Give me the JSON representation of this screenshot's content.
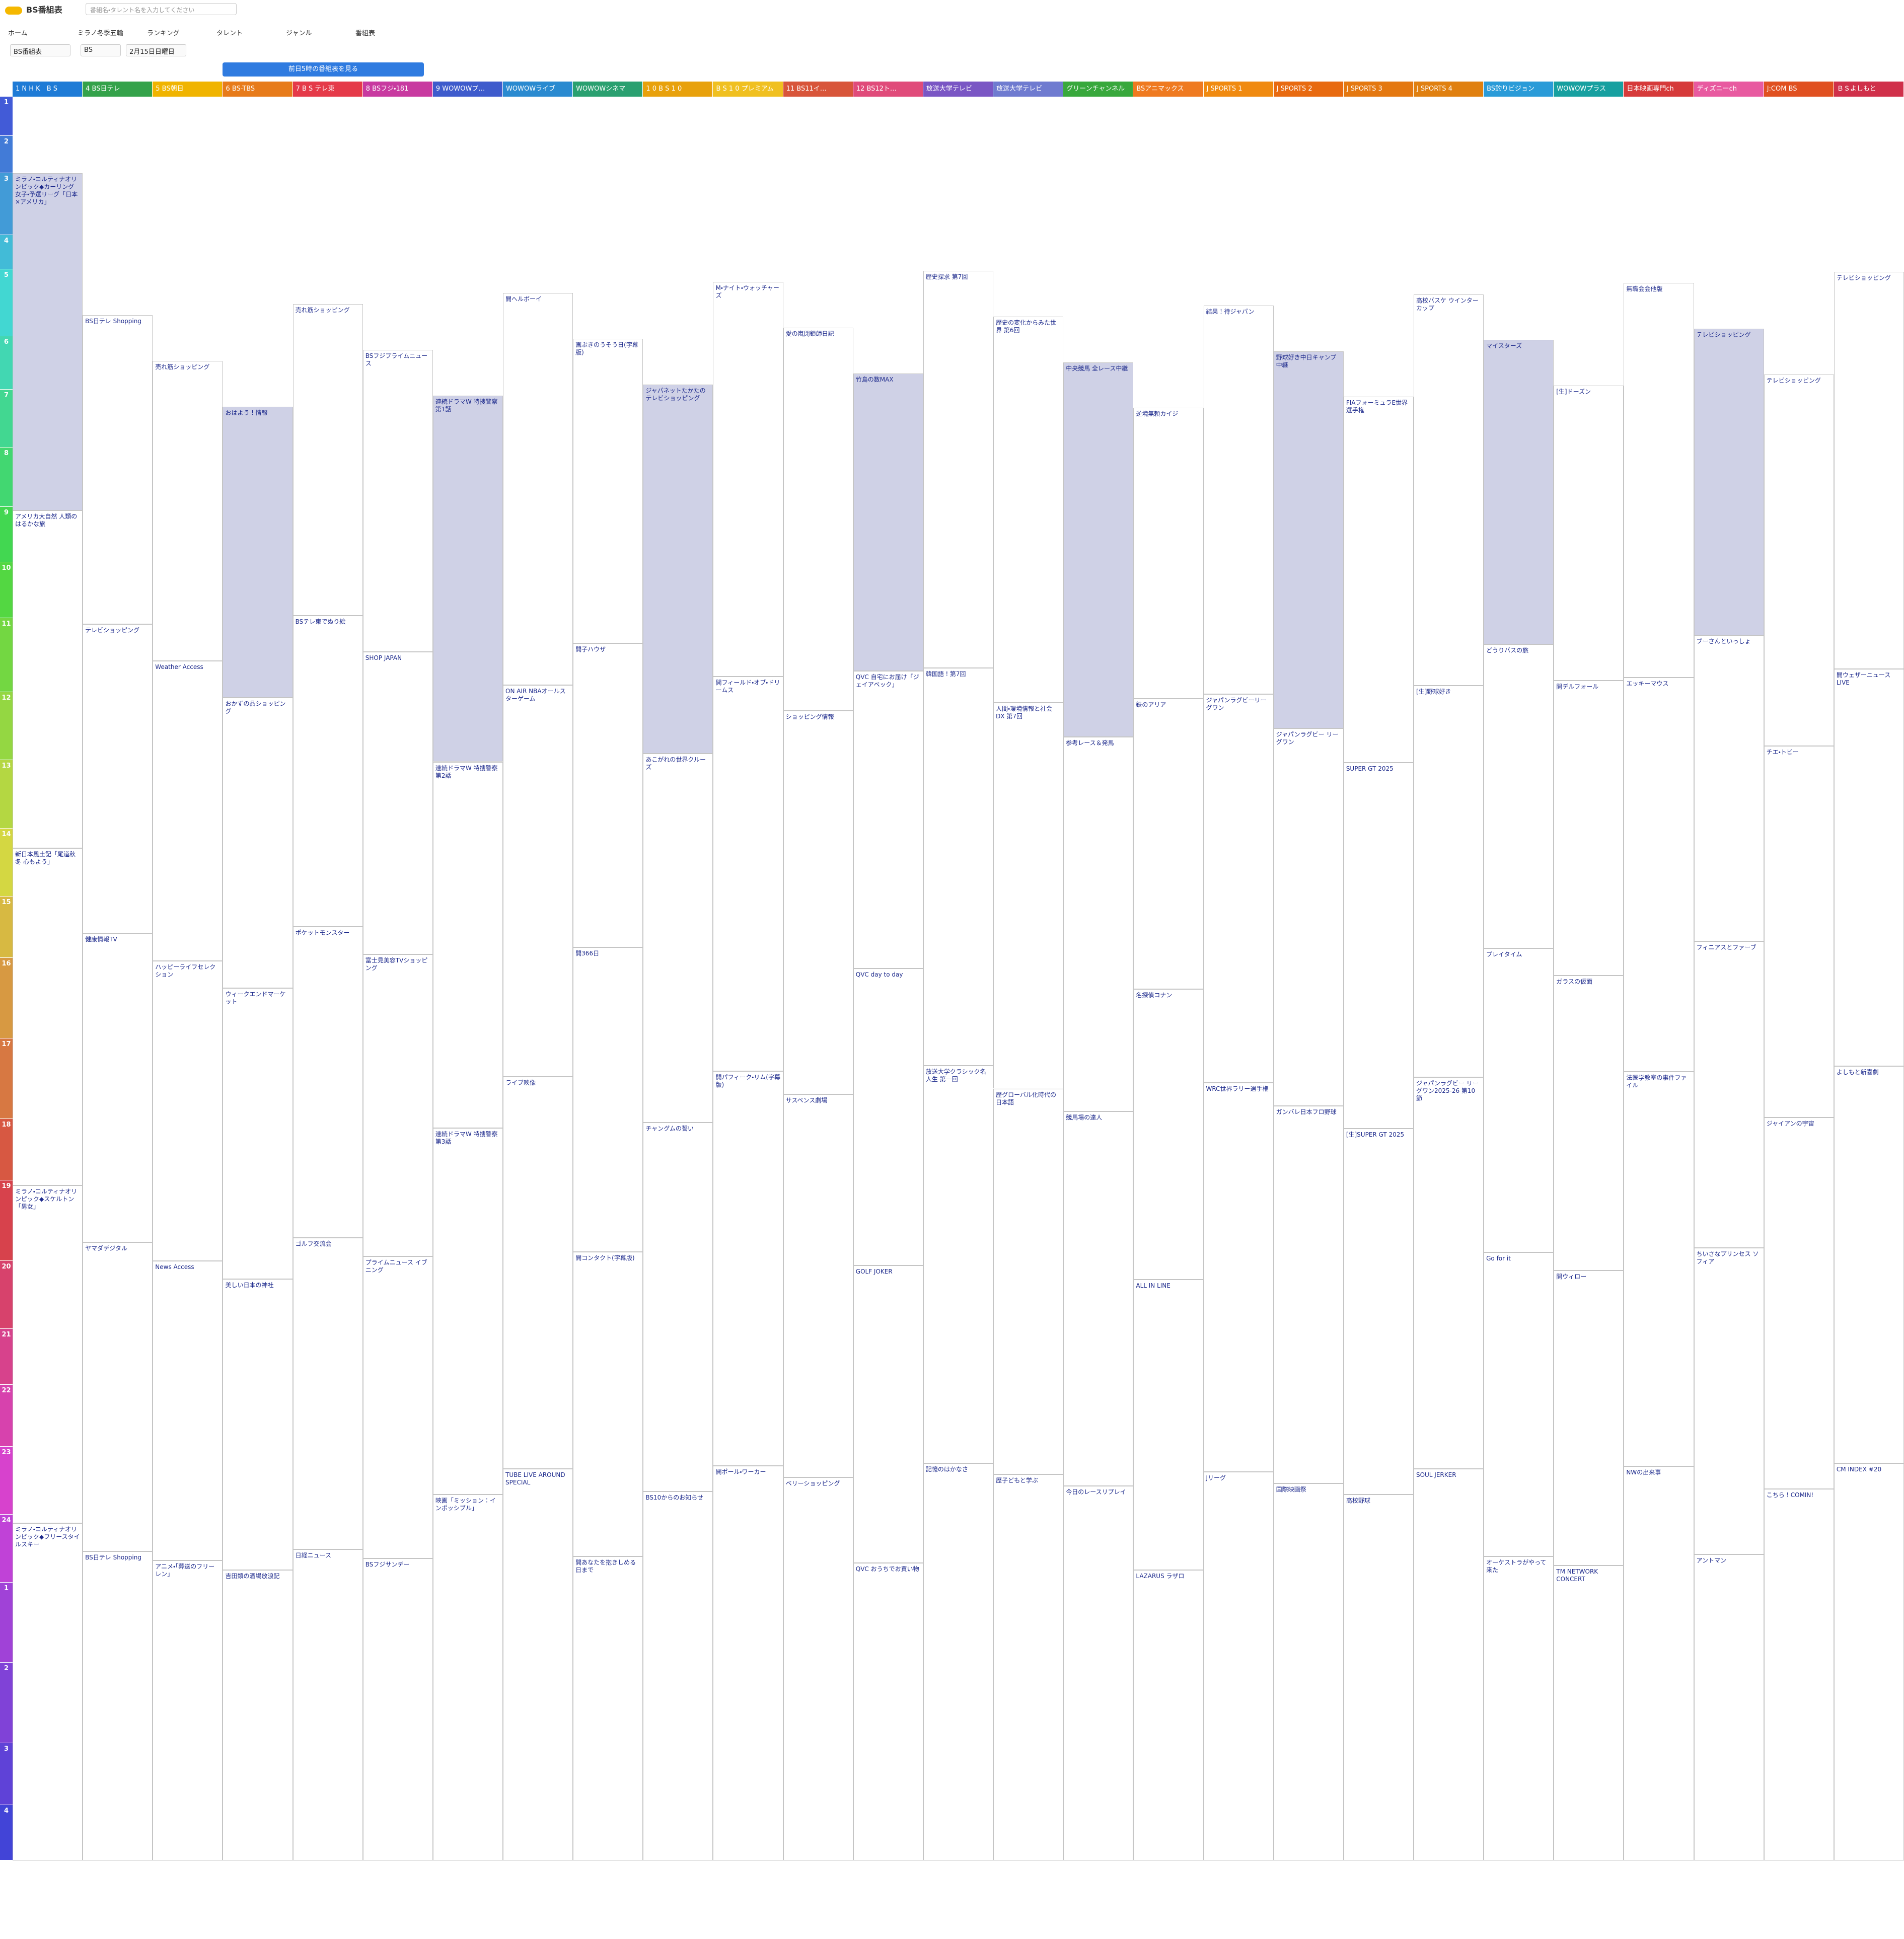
{
  "header": {
    "logo": "BS番組表",
    "search_placeholder": "番組名・タレント名を入力してください",
    "nav": [
      "ホーム",
      "ミラノ冬季五輪",
      "ランキング",
      "タレント",
      "ジャンル",
      "番組表"
    ],
    "selects": [
      "BS番組表",
      "BS",
      "2月15日日曜日"
    ],
    "button": "前日5時の番組表を見る"
  },
  "hours": [
    1,
    2,
    3,
    4,
    5,
    6,
    7,
    8,
    9,
    10,
    11,
    12,
    13,
    14,
    15,
    16,
    17,
    18,
    19,
    20,
    21,
    22,
    23,
    24,
    1,
    2,
    3,
    4
  ],
  "channels": [
    {
      "name": "1 N H K　B S",
      "programs": [
        "ミラノ・コルティナオリンピック◆カーリング女子・予選リーグ「日本×アメリカ」",
        "アメリカ大自然 人類のはるかな旅",
        "新日本風土記「尾道秋冬 心もよう」",
        "ミラノ・コルティナオリンピック◆スケルトン「男女」",
        "ミラノ・コルティナオリンピック◆フリースタイルスキー"
      ]
    },
    {
      "name": "4 BS日テレ",
      "programs": [
        "BS日テレ Shopping",
        "テレビショッピング",
        "健康情報TV",
        "ヤマダデジタル",
        "BS日テレ Shopping"
      ]
    },
    {
      "name": "5 BS朝日",
      "programs": [
        "売れ筋ショッピング",
        "Weather Access",
        "ハッピーライフセレクション",
        "News Access",
        "アニメ・「葬送のフリーレン」"
      ]
    },
    {
      "name": "6 BS-TBS",
      "programs": [
        "おはよう！情報",
        "おかずの品ショッピング",
        "ウィークエンドマーケット",
        "美しい日本の神社",
        "吉田類の酒場放浪記"
      ]
    },
    {
      "name": "7 B S テレ東",
      "programs": [
        "売れ筋ショッピング",
        "BSテレ東でぬり絵",
        "ポケットモンスター",
        "ゴルフ交流会",
        "日経ニュース"
      ]
    },
    {
      "name": "8 BSフジ・181",
      "programs": [
        "BSフジプライムニュース",
        "SHOP JAPAN",
        "富士見美容TVショッピング",
        "プライムニュース イブニング",
        "BSフジサンデー"
      ]
    },
    {
      "name": "9 WOWOWプ…",
      "programs": [
        "連続ドラマW 特捜警察 第1話",
        "連続ドラマW 特捜警察 第2話",
        "連続ドラマW 特捜警察 第3話",
        "映画「ミッション：インポッシブル」"
      ]
    },
    {
      "name": "WOWOWライブ",
      "programs": [
        "開へルボーイ",
        "ON AIR NBAオールスターゲーム",
        "ライブ映像",
        "TUBE LIVE AROUND SPECIAL"
      ]
    },
    {
      "name": "WOWOWシネマ",
      "programs": [
        "画ぶきのうそう日(字幕版)",
        "開子ハウザ",
        "開366日",
        "開コンタクト(字幕版)",
        "開あなたを抱きしめる日まで"
      ]
    },
    {
      "name": "1 0 B S 1 0",
      "programs": [
        "ジャパネットたかたのテレビショッピング",
        "あこがれの世界クルーズ",
        "チャングムの誓い",
        "BS10からのお知らせ"
      ]
    },
    {
      "name": "B S 1 0 プレミアム",
      "programs": [
        "M・ナイト・ウォッチャーズ",
        "開フィールド・オブ・ドリームス",
        "開パフィーク・リム(字幕版)",
        "開ポール・ワーカー"
      ]
    },
    {
      "name": "11 BS11イ…",
      "programs": [
        "愛の嵐閉鎖師日記",
        "ショッピング情報",
        "サスペンス劇場",
        "ベリーショッピング"
      ]
    },
    {
      "name": "12 BS12ト…",
      "programs": [
        "竹島の数MAX",
        "QVC 自宅にお届け「ジェイアベック」",
        "QVC day to day",
        "GOLF JOKER",
        "QVC おうちでお買い物"
      ]
    },
    {
      "name": "放送大学テレビ",
      "programs": [
        "歴史探求 第7回",
        "韓国語！第7回",
        "放送大学クラシック名人生 第一回",
        "記憶のはかなさ"
      ]
    },
    {
      "name": "放送大学テレビ",
      "programs": [
        "歴史の変化からみた世界 第6回",
        "人間・環境情報と社会DX 第7回",
        "歴グローバル化時代の日本語",
        "歴子どもと学ぶ"
      ]
    },
    {
      "name": "グリーンチャンネル",
      "programs": [
        "中央競馬 全レース中継",
        "参考レース＆発馬",
        "競馬場の達人",
        "今日のレースリプレイ"
      ]
    },
    {
      "name": "BSアニマックス",
      "programs": [
        "逆境無頼カイジ",
        "鉄のアリア",
        "名探偵コナン",
        "ALL IN LINE",
        "LAZARUS ラザロ"
      ]
    },
    {
      "name": "J SPORTS 1",
      "programs": [
        "結果！待ジャパン",
        "ジャパンラグビーリーグワン",
        "WRC世界ラリー選手権",
        "Jリーグ"
      ]
    },
    {
      "name": "J SPORTS 2",
      "programs": [
        "野球好き中日キャンプ中継",
        "ジャパンラグビー リーグワン",
        "ガンバレ日本フロ野球",
        "国際映画祭"
      ]
    },
    {
      "name": "J SPORTS 3",
      "programs": [
        "FIAフォーミュラE世界選手権",
        "SUPER GT 2025",
        "[生]SUPER GT 2025",
        "高校野球"
      ]
    },
    {
      "name": "J SPORTS 4",
      "programs": [
        "高校バスケ ウインターカップ",
        "[生]野球好き",
        "ジャパンラグビー リーグワン2025-26 第10節",
        "SOUL JERKER"
      ]
    },
    {
      "name": "BS釣りビジョン",
      "programs": [
        "マイスターズ",
        "どうりバスの旅",
        "プレイタイム",
        "Go for it",
        "オーケストラがやって来た"
      ]
    },
    {
      "name": "WOWOWプラス",
      "programs": [
        "[生]ドーズン",
        "開デルフォール",
        "ガラスの仮面",
        "開ウィロー",
        "TM NETWORK CONCERT"
      ]
    },
    {
      "name": "日本映画専門ch",
      "programs": [
        "無職会会他版",
        "エッキーマウス",
        "法医学教室の事件ファイル",
        "NWの出来事"
      ]
    },
    {
      "name": "ディズニーch",
      "programs": [
        "テレビショッピング",
        "ブーさんといっしょ",
        "フィニアスとファーブ",
        "ちいさなプリンセス ソフィア",
        "アントマン"
      ]
    },
    {
      "name": "J:COM BS",
      "programs": [
        "テレビショッピング",
        "チエ・トビー",
        "ジャイアンの宇宙",
        "こちら！COMIN!"
      ]
    },
    {
      "name": "ＢＳよしもと",
      "programs": [
        "テレビショッピング",
        "開ウェザーニュース LIVE",
        "よしもと新喜劇",
        "CM INDEX #20"
      ]
    }
  ]
}
